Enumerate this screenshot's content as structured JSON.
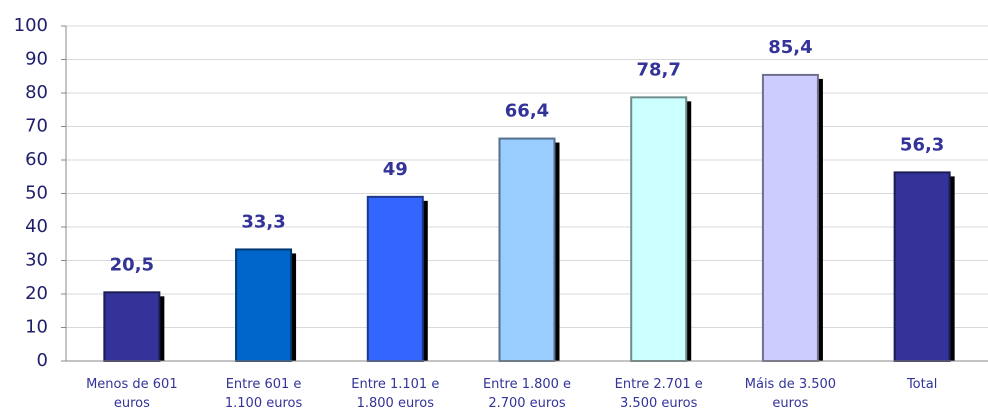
{
  "chart_data": {
    "type": "bar",
    "categories": [
      [
        "Menos de 601",
        "euros"
      ],
      [
        "Entre 601  e",
        "1.100 euros"
      ],
      [
        "Entre 1.101  e",
        "1.800 euros"
      ],
      [
        "Entre 1.800  e",
        "2.700 euros"
      ],
      [
        "Entre 2.701  e",
        "3.500 euros"
      ],
      [
        "Máis de 3.500",
        "euros"
      ],
      [
        "Total"
      ]
    ],
    "values": [
      20.5,
      33.3,
      49,
      66.4,
      78.7,
      85.4,
      56.3
    ],
    "value_labels": [
      "20,5",
      "33,3",
      "49",
      "66,4",
      "78,7",
      "85,4",
      "56,3"
    ],
    "colors": [
      "#333399",
      "#0066cc",
      "#3366ff",
      "#99ccff",
      "#ccffff",
      "#ccccff",
      "#333399"
    ],
    "ylim": [
      0,
      100
    ],
    "yticks": [
      0,
      10,
      20,
      30,
      40,
      50,
      60,
      70,
      80,
      90,
      100
    ],
    "grid": true
  }
}
